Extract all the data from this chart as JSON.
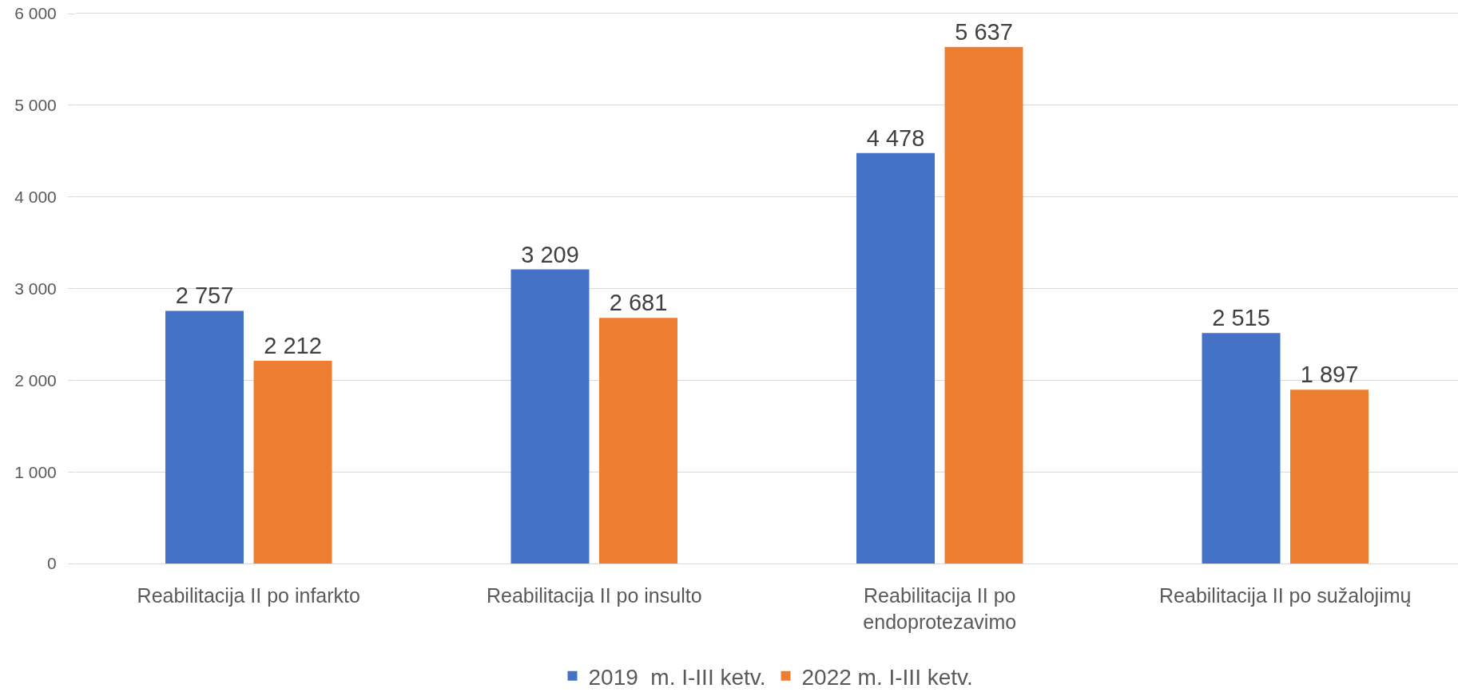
{
  "chart_data": {
    "type": "bar",
    "categories": [
      "Reabilitacija II po infarkto",
      "Reabilitacija II po insulto",
      "Reabilitacija II po endoprotezavimo",
      "Reabilitacija II po sužalojimų"
    ],
    "series": [
      {
        "name": "2019  m. I-III ketv.",
        "color": "#4472c4",
        "values": [
          2757,
          3209,
          4478,
          2515
        ],
        "value_labels": [
          "2 757",
          "3 209",
          "4 478",
          "2 515"
        ]
      },
      {
        "name": "2022 m. I-III ketv.",
        "color": "#ed7d31",
        "values": [
          2212,
          2681,
          5637,
          1897
        ],
        "value_labels": [
          "2 212",
          "2 681",
          "5 637",
          "1 897"
        ]
      }
    ],
    "ylim": [
      0,
      6000
    ],
    "yticks": [
      {
        "value": 0,
        "label": "0"
      },
      {
        "value": 1000,
        "label": "1 000"
      },
      {
        "value": 2000,
        "label": "2 000"
      },
      {
        "value": 3000,
        "label": "3 000"
      },
      {
        "value": 4000,
        "label": "4 000"
      },
      {
        "value": 5000,
        "label": "5 000"
      },
      {
        "value": 6000,
        "label": "6 000"
      }
    ],
    "grid": "y",
    "legend": "bottom"
  }
}
